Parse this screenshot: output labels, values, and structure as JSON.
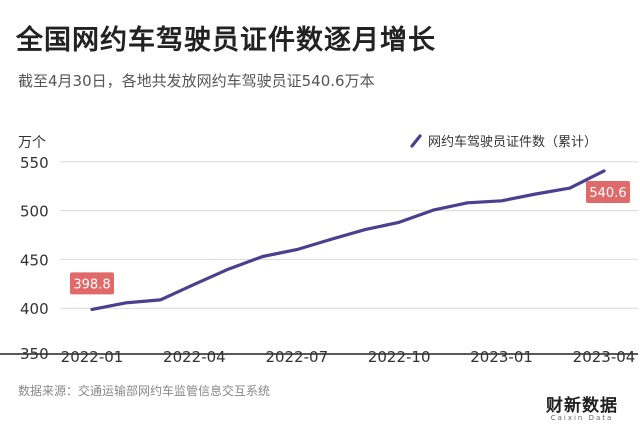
{
  "title": "全国网约车驾驶员证件数逐月增长",
  "subtitle": "截至4月30日，各地共发放网约车驾驶员证540.6万本",
  "unit": "万个",
  "source": "数据来源：交通运输部网约车监管信息交互系统",
  "brand": "财新数据",
  "brand_sub": "Caixin Data",
  "chart_data": {
    "type": "line",
    "series": [
      {
        "name": "网约车驾驶员证件数（累计）",
        "color": "#4b3f8f",
        "x": [
          "2022-01",
          "2022-02",
          "2022-03",
          "2022-04",
          "2022-05",
          "2022-06",
          "2022-07",
          "2022-08",
          "2022-09",
          "2022-10",
          "2022-11",
          "2022-12",
          "2023-01",
          "2023-02",
          "2023-03",
          "2023-04"
        ],
        "values": [
          398.8,
          405.5,
          408.5,
          424.5,
          440,
          453,
          460,
          470.5,
          480.5,
          488,
          500.5,
          508,
          510,
          517,
          523,
          540.6
        ]
      }
    ],
    "x_tick_labels": [
      "2022-01",
      "2022-04",
      "2022-07",
      "2022-10",
      "2023-01",
      "2023-04"
    ],
    "y_ticks": [
      350,
      400,
      450,
      500,
      550
    ],
    "ylim": [
      350,
      560
    ],
    "grid": true,
    "legend": "top-right",
    "annotations": [
      {
        "label": "398.8",
        "index": 0
      },
      {
        "label": "540.6",
        "index": 15
      }
    ],
    "annotation_color": "#e06a6a"
  }
}
